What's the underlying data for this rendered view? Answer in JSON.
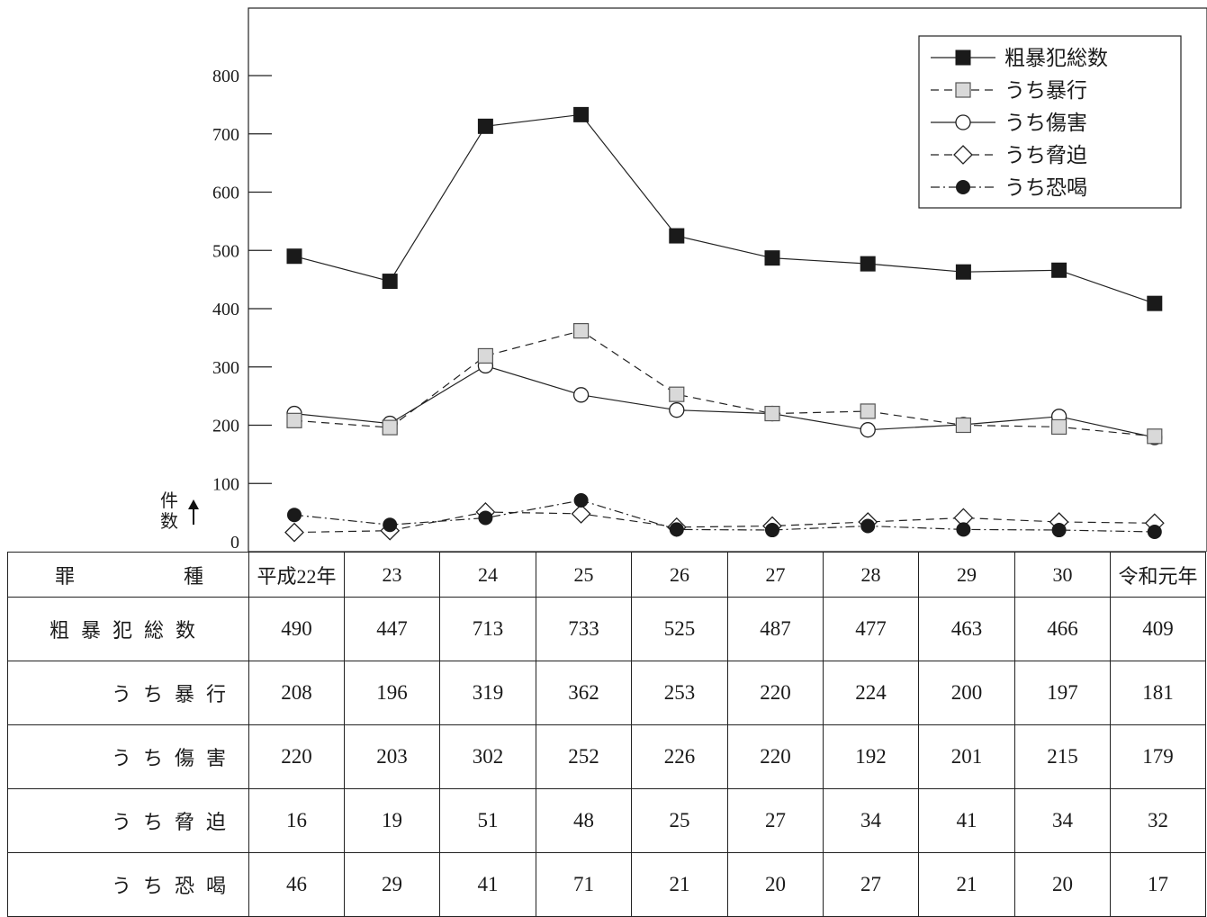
{
  "chart_data": {
    "type": "line",
    "categories": [
      "平成22年",
      "23",
      "24",
      "25",
      "26",
      "27",
      "28",
      "29",
      "30",
      "令和元年"
    ],
    "ylim": [
      0,
      900
    ],
    "yticks": [
      0,
      100,
      200,
      300,
      400,
      500,
      600,
      700,
      800
    ],
    "ylabel": "件数",
    "legend_position": "top-right",
    "series": [
      {
        "name": "粗暴犯総数",
        "marker": "filled-square",
        "line": "solid",
        "values": [
          490,
          447,
          713,
          733,
          525,
          487,
          477,
          463,
          466,
          409
        ]
      },
      {
        "name": "うち暴行",
        "marker": "gray-square",
        "line": "dashed",
        "values": [
          208,
          196,
          319,
          362,
          253,
          220,
          224,
          200,
          197,
          181
        ]
      },
      {
        "name": "うち傷害",
        "marker": "open-circle",
        "line": "solid",
        "values": [
          220,
          203,
          302,
          252,
          226,
          220,
          192,
          201,
          215,
          179
        ]
      },
      {
        "name": "うち脅迫",
        "marker": "open-diamond",
        "line": "dashed",
        "values": [
          16,
          19,
          51,
          48,
          25,
          27,
          34,
          41,
          34,
          32
        ]
      },
      {
        "name": "うち恐喝",
        "marker": "filled-circle",
        "line": "dash-dot",
        "values": [
          46,
          29,
          41,
          71,
          21,
          20,
          27,
          21,
          20,
          17
        ]
      }
    ]
  },
  "table": {
    "header_label_chars": [
      "罪",
      "種"
    ],
    "rows": [
      {
        "label": "粗暴犯総数",
        "sub": false,
        "series_index": 0
      },
      {
        "label": "うち暴行",
        "sub": true,
        "series_index": 1
      },
      {
        "label": "うち傷害",
        "sub": true,
        "series_index": 2
      },
      {
        "label": "うち脅迫",
        "sub": true,
        "series_index": 3
      },
      {
        "label": "うち恐喝",
        "sub": true,
        "series_index": 4
      }
    ]
  }
}
